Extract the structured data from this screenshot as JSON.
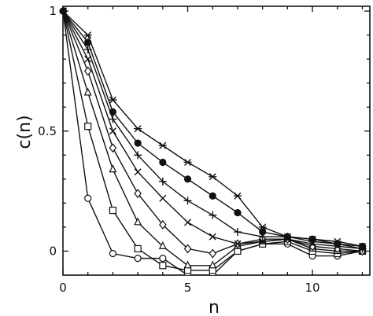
{
  "chart_data": {
    "type": "line",
    "title": "",
    "xlabel": "n",
    "ylabel": "c(n)",
    "xlim": [
      0,
      12.3
    ],
    "ylim": [
      -0.1,
      1.02
    ],
    "xticks": [
      0,
      5,
      10
    ],
    "yticks": [
      0,
      0.5,
      1
    ],
    "xtick_labels": [
      "0",
      "5",
      "10"
    ],
    "ytick_labels": [
      "0",
      "0.5",
      "1"
    ],
    "grid": false,
    "legend": "none",
    "series": [
      {
        "marker": "circle",
        "x": [
          0,
          1,
          2,
          3,
          4,
          5,
          6,
          7,
          8,
          9,
          10,
          11,
          12
        ],
        "y": [
          1,
          0.22,
          -0.01,
          -0.03,
          -0.03,
          -0.1,
          -0.1,
          0.0,
          0.03,
          0.03,
          -0.02,
          -0.02,
          0.0
        ]
      },
      {
        "marker": "square",
        "x": [
          0,
          1,
          2,
          3,
          4,
          5,
          6,
          7,
          8,
          9,
          10,
          11,
          12
        ],
        "y": [
          1,
          0.52,
          0.17,
          0.01,
          -0.06,
          -0.08,
          -0.08,
          0.0,
          0.03,
          0.04,
          0.0,
          -0.01,
          0.0
        ]
      },
      {
        "marker": "triangle",
        "x": [
          0,
          1,
          2,
          3,
          4,
          5,
          6,
          7,
          8,
          9,
          10,
          11,
          12
        ],
        "y": [
          1,
          0.66,
          0.34,
          0.12,
          0.02,
          -0.06,
          -0.06,
          0.02,
          0.04,
          0.05,
          0.01,
          0.0,
          0.0
        ]
      },
      {
        "marker": "diamond",
        "x": [
          0,
          1,
          2,
          3,
          4,
          5,
          6,
          7,
          8,
          9,
          10,
          11,
          12
        ],
        "y": [
          1,
          0.75,
          0.43,
          0.24,
          0.11,
          0.01,
          -0.01,
          0.03,
          0.05,
          0.05,
          0.02,
          0.01,
          0.0
        ]
      },
      {
        "marker": "x",
        "x": [
          0,
          1,
          2,
          3,
          4,
          5,
          6,
          7,
          8,
          9,
          10,
          11,
          12
        ],
        "y": [
          1,
          0.8,
          0.5,
          0.33,
          0.22,
          0.12,
          0.06,
          0.03,
          0.04,
          0.05,
          0.03,
          0.02,
          0.01
        ]
      },
      {
        "marker": "plus",
        "x": [
          0,
          1,
          2,
          3,
          4,
          5,
          6,
          7,
          8,
          9,
          10,
          11,
          12
        ],
        "y": [
          1,
          0.84,
          0.55,
          0.4,
          0.29,
          0.21,
          0.15,
          0.08,
          0.06,
          0.06,
          0.04,
          0.03,
          0.01
        ]
      },
      {
        "marker": "filled-circle",
        "x": [
          0,
          1,
          2,
          3,
          4,
          5,
          6,
          7,
          8,
          9,
          10,
          11,
          12
        ],
        "y": [
          1,
          0.87,
          0.58,
          0.45,
          0.37,
          0.3,
          0.23,
          0.16,
          0.08,
          0.06,
          0.05,
          0.03,
          0.02
        ]
      },
      {
        "marker": "asterisk",
        "x": [
          0,
          1,
          2,
          3,
          4,
          5,
          6,
          7,
          8,
          9,
          10,
          11,
          12
        ],
        "y": [
          1,
          0.9,
          0.63,
          0.51,
          0.44,
          0.37,
          0.31,
          0.23,
          0.1,
          0.06,
          0.05,
          0.04,
          0.02
        ]
      }
    ]
  }
}
